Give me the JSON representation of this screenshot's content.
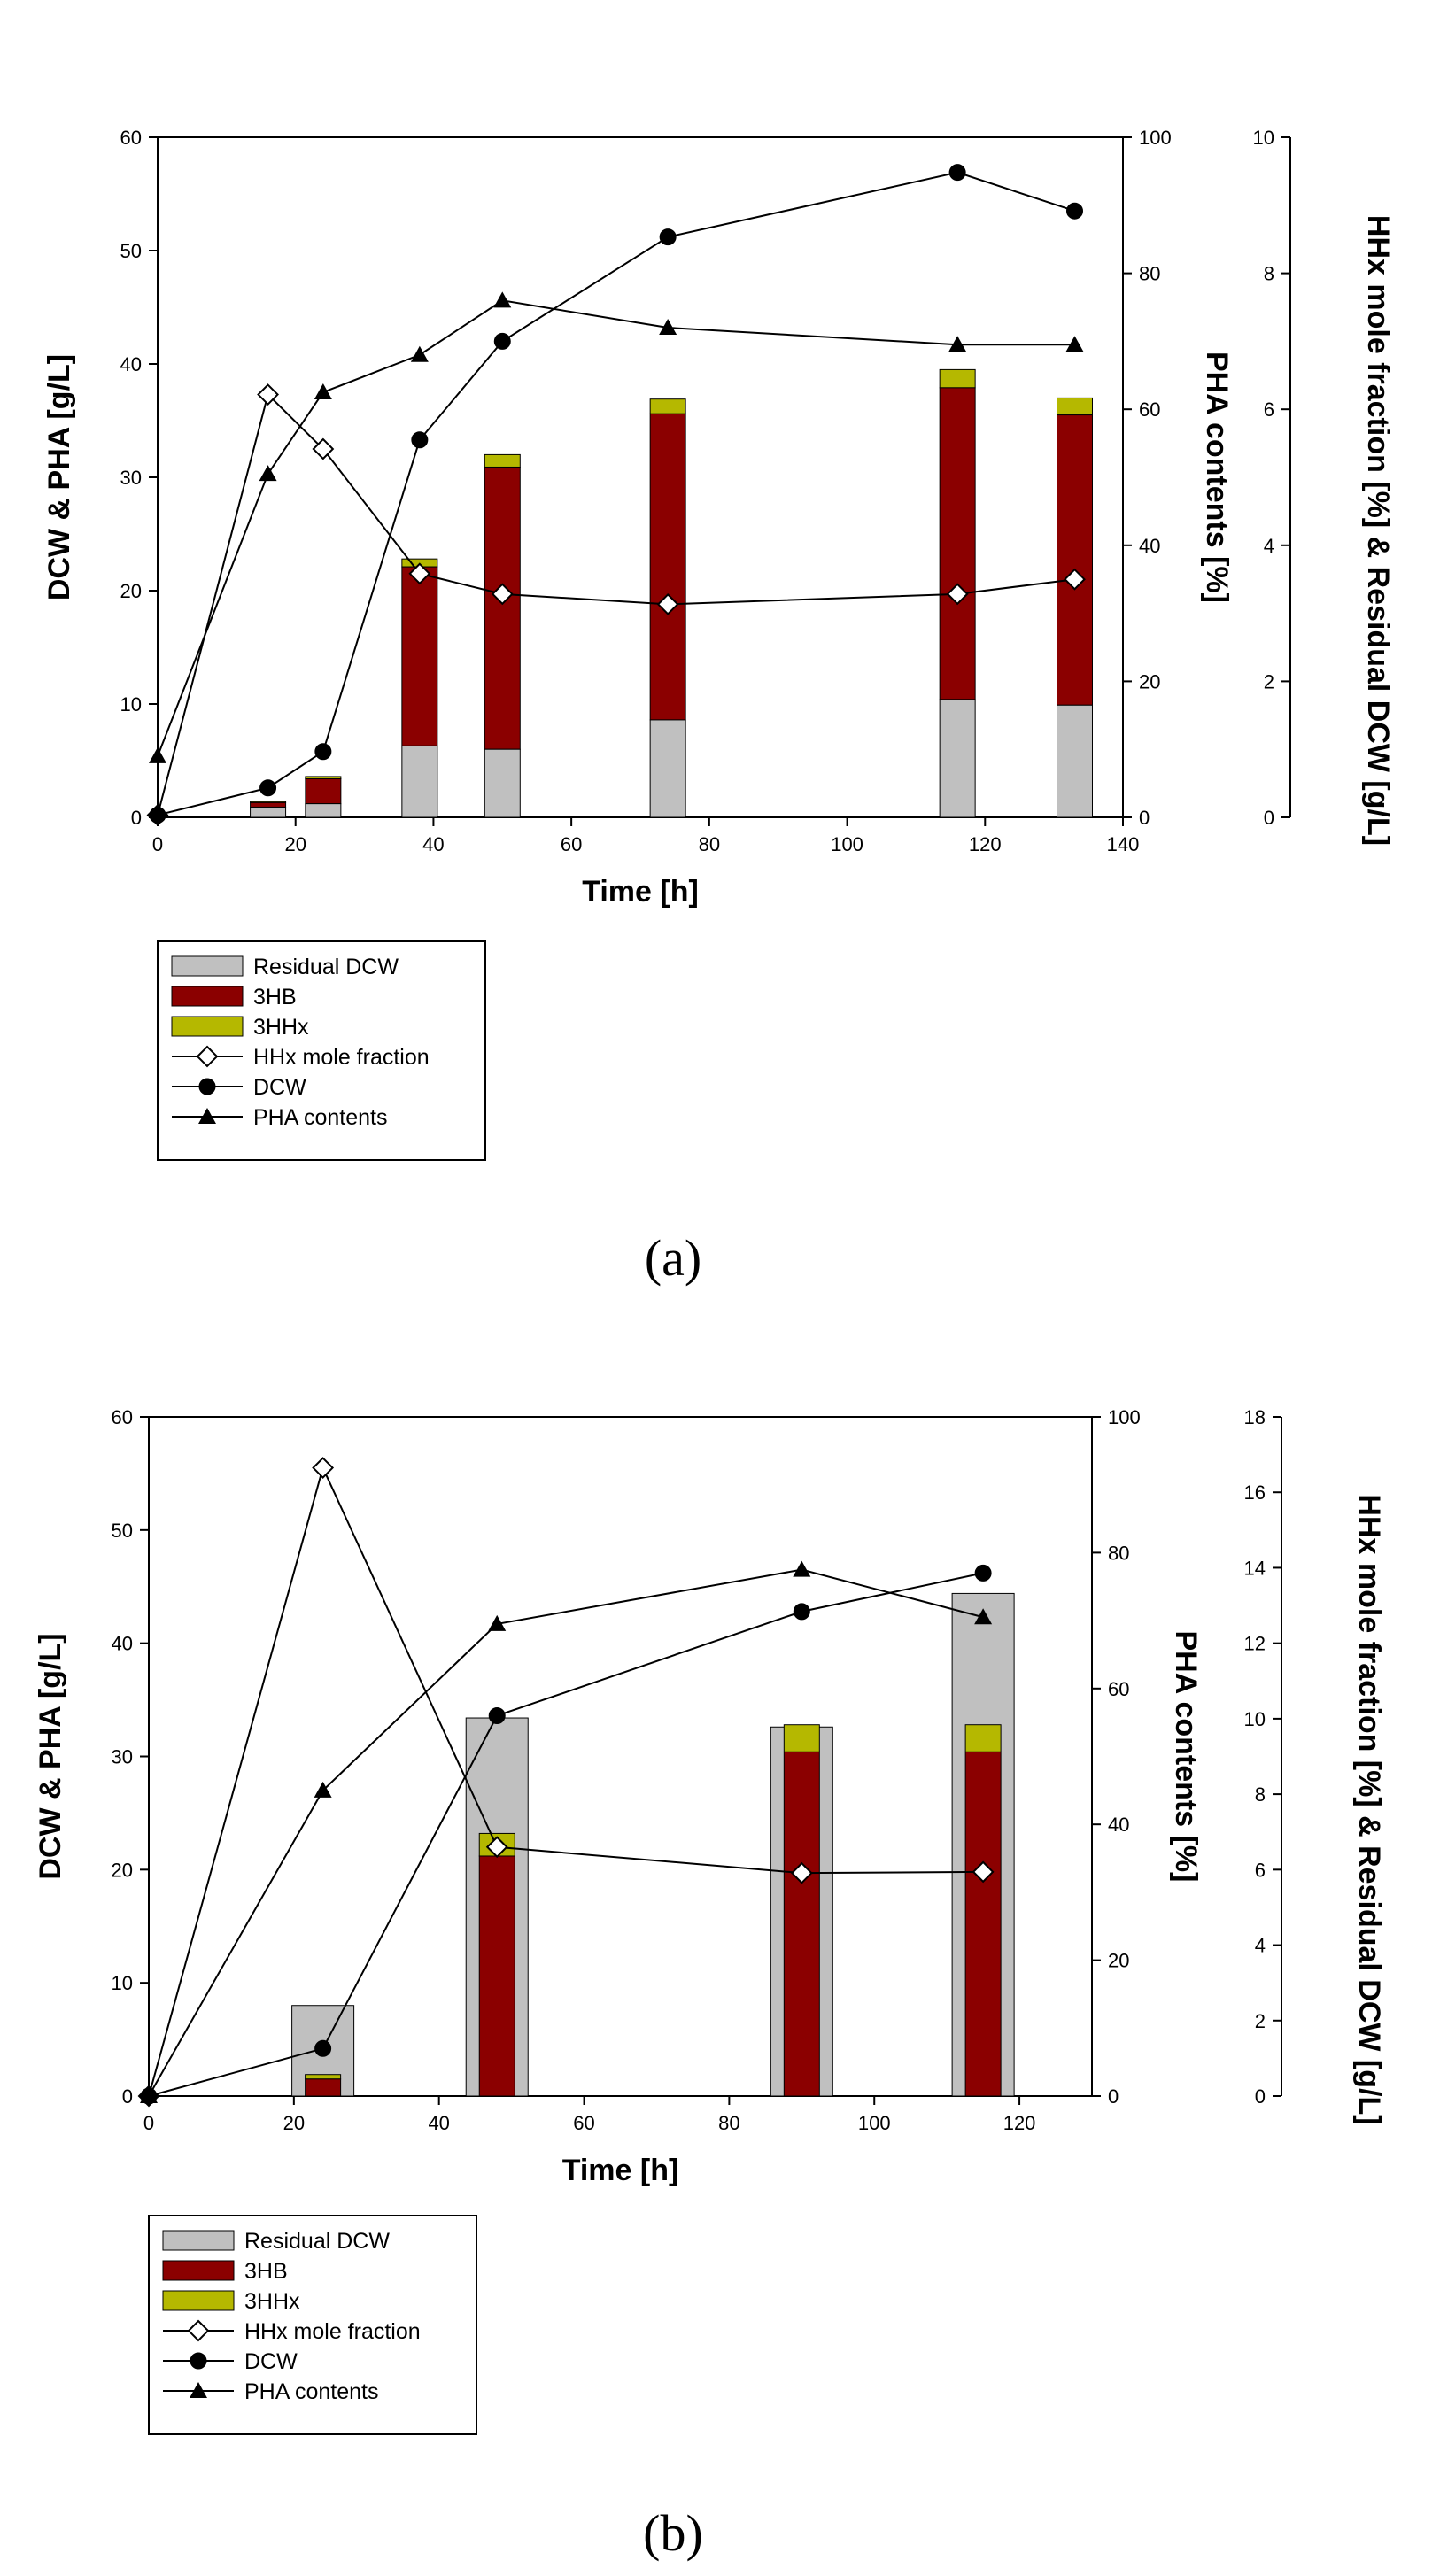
{
  "colors": {
    "residual": "#c0c0c0",
    "hb": "#8b0000",
    "hhx": "#b5b800",
    "line": "#000000"
  },
  "chart_data": [
    {
      "id": "a",
      "type": "bar+line",
      "caption": "(a)",
      "xlabel": "Time [h]",
      "ylabel_left": "DCW & PHA [g/L]",
      "ylabel_right": "PHA contents [%]",
      "ylabel_far": "HHx mole fraction [%] & Residual DCW [g/L]",
      "xlim": [
        0,
        140
      ],
      "xticks": [
        0,
        20,
        40,
        60,
        80,
        100,
        120,
        140
      ],
      "ylim_left": [
        0,
        60
      ],
      "yticks_left": [
        0,
        10,
        20,
        30,
        40,
        50,
        60
      ],
      "ylim_right": [
        0,
        100
      ],
      "yticks_right": [
        0,
        20,
        40,
        60,
        80,
        100
      ],
      "ylim_far": [
        0,
        10
      ],
      "yticks_far": [
        0,
        2,
        4,
        6,
        8,
        10
      ],
      "bars": [
        {
          "t": 16,
          "residual": 0.9,
          "hb": 1.3,
          "hhx": 1.4
        },
        {
          "t": 24,
          "residual": 1.2,
          "hb": 3.4,
          "hhx": 3.6
        },
        {
          "t": 38,
          "residual": 6.3,
          "hb": 22.1,
          "hhx": 22.8
        },
        {
          "t": 50,
          "residual": 6.0,
          "hb": 30.9,
          "hhx": 32.0
        },
        {
          "t": 74,
          "residual": 8.6,
          "hb": 35.6,
          "hhx": 36.9
        },
        {
          "t": 116,
          "residual": 10.4,
          "hb": 37.9,
          "hhx": 39.5
        },
        {
          "t": 133,
          "residual": 9.9,
          "hb": 35.5,
          "hhx": 37.0
        }
      ],
      "series": [
        {
          "name": "HHx mole fraction",
          "marker": "diamond-open",
          "axis": "left",
          "x": [
            0,
            16,
            24,
            38,
            50,
            74,
            116,
            133
          ],
          "y": [
            0.2,
            37.3,
            32.5,
            21.5,
            19.7,
            18.8,
            19.7,
            21.0
          ]
        },
        {
          "name": "DCW",
          "marker": "circle",
          "axis": "left",
          "x": [
            0,
            16,
            24,
            38,
            50,
            74,
            116,
            133
          ],
          "y": [
            0.2,
            2.6,
            5.8,
            33.3,
            42.0,
            51.2,
            56.9,
            53.5
          ]
        },
        {
          "name": "PHA contents",
          "marker": "triangle",
          "axis": "right",
          "x": [
            0,
            16,
            24,
            38,
            50,
            74,
            116,
            133
          ],
          "y": [
            9,
            50.5,
            62.5,
            68,
            76,
            72,
            69.5,
            69.5
          ]
        }
      ],
      "legend": [
        "Residual DCW",
        "3HB",
        "3HHx",
        "HHx mole fraction",
        "DCW",
        "PHA contents"
      ]
    },
    {
      "id": "b",
      "type": "bar+line",
      "caption": "(b)",
      "xlabel": "Time [h]",
      "ylabel_left": "DCW & PHA [g/L]",
      "ylabel_right": "PHA contents [%]",
      "ylabel_far": "HHx mole fraction [%] & Residual DCW [g/L]",
      "xlim": [
        0,
        130
      ],
      "xticks": [
        0,
        20,
        40,
        60,
        80,
        100,
        120
      ],
      "ylim_left": [
        0,
        60
      ],
      "yticks_left": [
        0,
        10,
        20,
        30,
        40,
        50,
        60
      ],
      "ylim_right": [
        0,
        100
      ],
      "yticks_right": [
        0,
        20,
        40,
        60,
        80,
        100
      ],
      "ylim_far": [
        0,
        18
      ],
      "yticks_far": [
        0,
        2,
        4,
        6,
        8,
        10,
        12,
        14,
        16,
        18
      ],
      "wide_bars": [
        {
          "t": 24,
          "residual": 8.0
        },
        {
          "t": 48,
          "residual": 33.4
        },
        {
          "t": 90,
          "residual": 32.6
        },
        {
          "t": 115,
          "residual": 44.4
        }
      ],
      "bars": [
        {
          "t": 24,
          "hb": 1.5,
          "hhx": 1.9
        },
        {
          "t": 48,
          "hb": 21.2,
          "hhx": 23.2
        },
        {
          "t": 90,
          "hb": 30.4,
          "hhx": 32.8
        },
        {
          "t": 115,
          "hb": 30.4,
          "hhx": 32.8
        }
      ],
      "series": [
        {
          "name": "HHx mole fraction",
          "marker": "diamond-open",
          "axis": "left",
          "x": [
            0,
            24,
            48,
            90,
            115
          ],
          "y": [
            0,
            55.5,
            22.0,
            19.7,
            19.8
          ]
        },
        {
          "name": "DCW",
          "marker": "circle",
          "axis": "left",
          "x": [
            0,
            24,
            48,
            90,
            115
          ],
          "y": [
            0,
            4.2,
            33.6,
            42.8,
            46.2
          ]
        },
        {
          "name": "PHA contents",
          "marker": "triangle",
          "axis": "right",
          "x": [
            0,
            24,
            48,
            90,
            115
          ],
          "y": [
            0,
            45,
            69.5,
            77.5,
            70.5
          ]
        }
      ],
      "legend": [
        "Residual DCW",
        "3HB",
        "3HHx",
        "HHx mole fraction",
        "DCW",
        "PHA contents"
      ]
    }
  ]
}
